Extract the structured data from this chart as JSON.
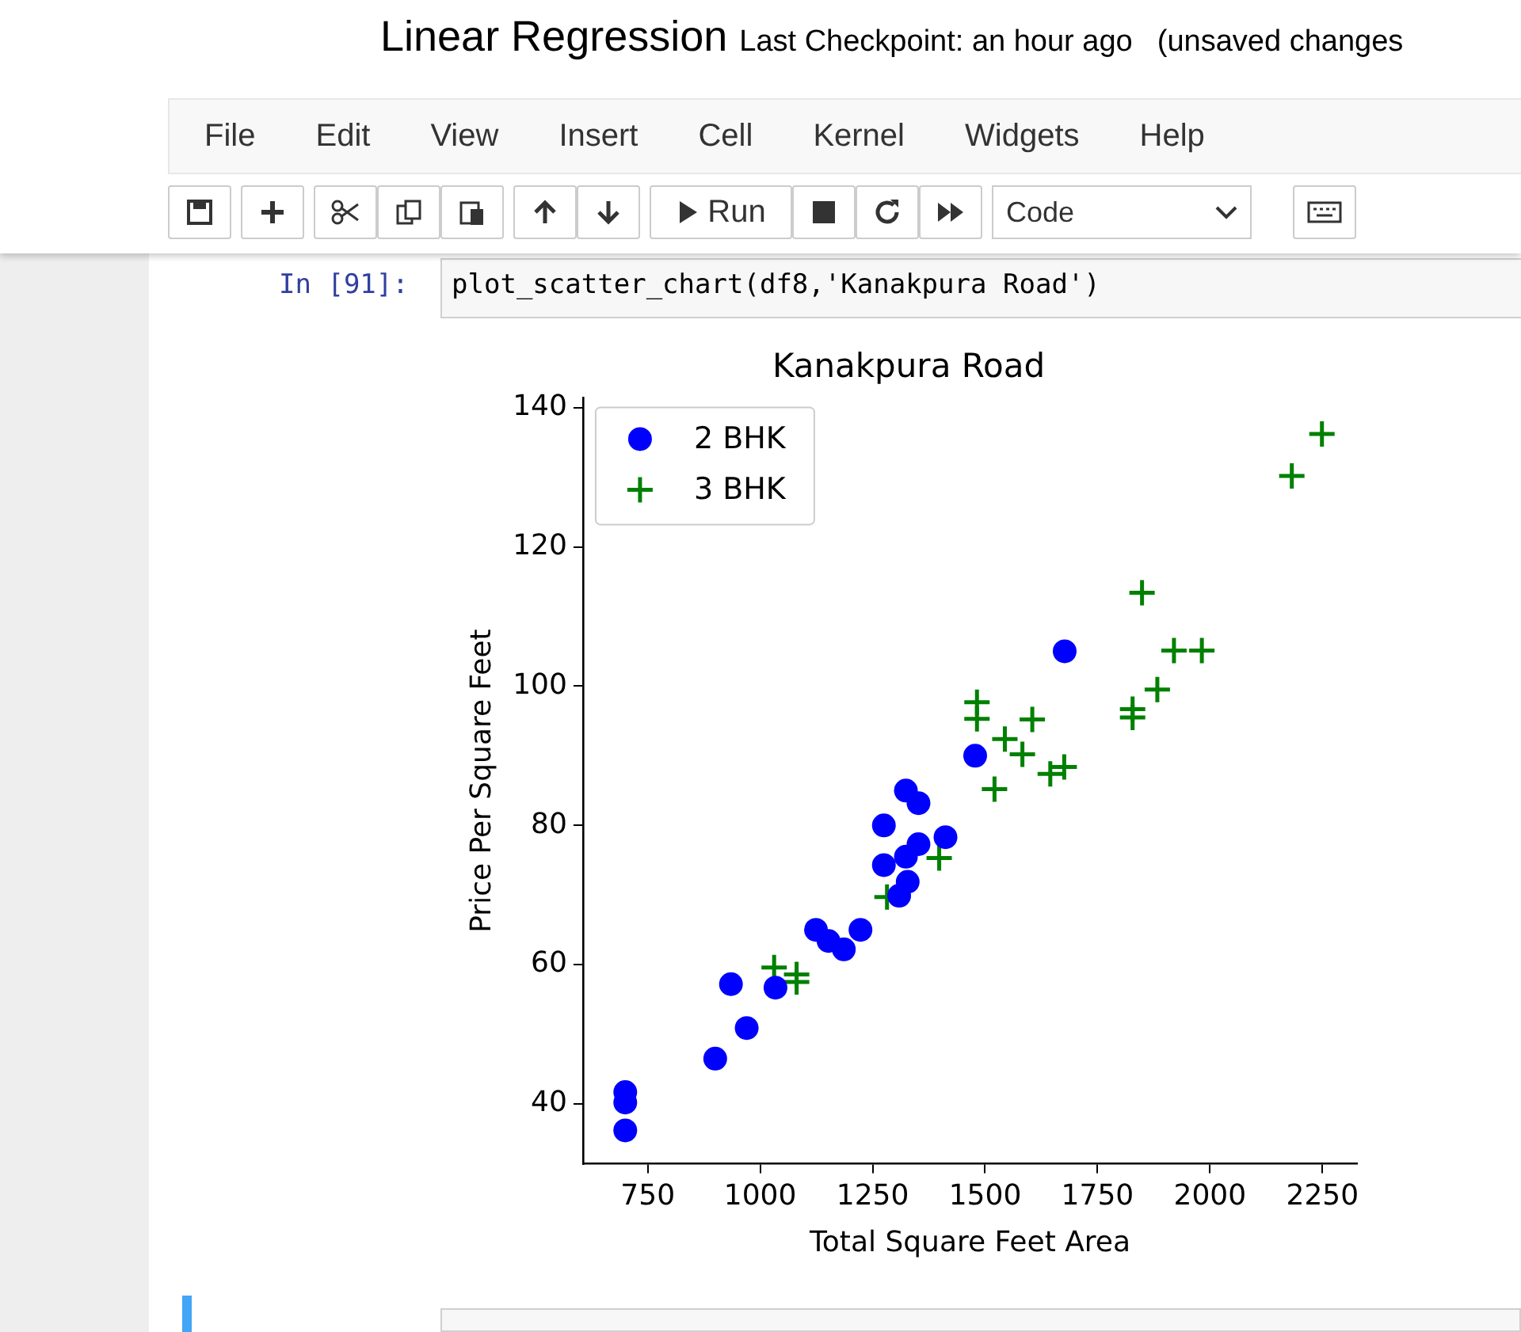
{
  "chart_data": {
    "type": "scatter",
    "title": "Kanakpura Road",
    "xlabel": "Total Square Feet Area",
    "ylabel": "Price Per Square Feet",
    "xlim": [
      606,
      2327
    ],
    "xticks": [
      750,
      1000,
      1250,
      1500,
      1750,
      2000,
      2250
    ],
    "ylim": [
      31.4,
      141.4
    ],
    "yticks": [
      40,
      60,
      80,
      100,
      120,
      140
    ],
    "grid": false,
    "legend": "top left",
    "series": [
      {
        "name": "2 BHK",
        "color": "#0000ff",
        "marker": "circle",
        "x": [
          700,
          700,
          700,
          900,
          970,
          935,
          1034,
          1124,
          1152,
          1186,
          1223,
          1275,
          1275,
          1324,
          1352,
          1352,
          1324,
          1328,
          1309,
          1412,
          1478,
          1677
        ],
        "values": [
          41.7,
          40.2,
          36.2,
          46.5,
          50.9,
          57.2,
          56.7,
          65,
          63.4,
          62.2,
          65,
          80,
          74.3,
          85,
          83.2,
          77.3,
          75.5,
          71.9,
          69.9,
          78.3,
          90,
          105
        ]
      },
      {
        "name": "3 BHK",
        "color": "#008000",
        "marker": "cross",
        "x": [
          1031,
          1081,
          1081,
          1282,
          1398,
          2249,
          2182,
          1849,
          1920,
          1982,
          1883,
          1828,
          1828,
          1482,
          1482,
          1605,
          1544,
          1583,
          1645,
          1676,
          1645,
          1521
        ],
        "values": [
          59.6,
          58.6,
          57.5,
          69.7,
          75.3,
          136.2,
          130.2,
          113.4,
          105.1,
          105.1,
          99.5,
          96.7,
          95.5,
          97.7,
          95.3,
          95.2,
          92.4,
          90.2,
          null,
          88.4,
          87.4,
          85.2
        ]
      }
    ],
    "annotations": [
      "Linear Regression",
      "Last Checkpoint: an hour ago",
      "(unsaved changes",
      "File",
      "Edit",
      "View",
      "Insert",
      "Cell",
      "Kernel",
      "Widgets",
      "Help",
      "Run",
      "Code",
      "In [91]:",
      "plot_scatter_chart(df8,'Kanakpura Road')"
    ]
  }
}
